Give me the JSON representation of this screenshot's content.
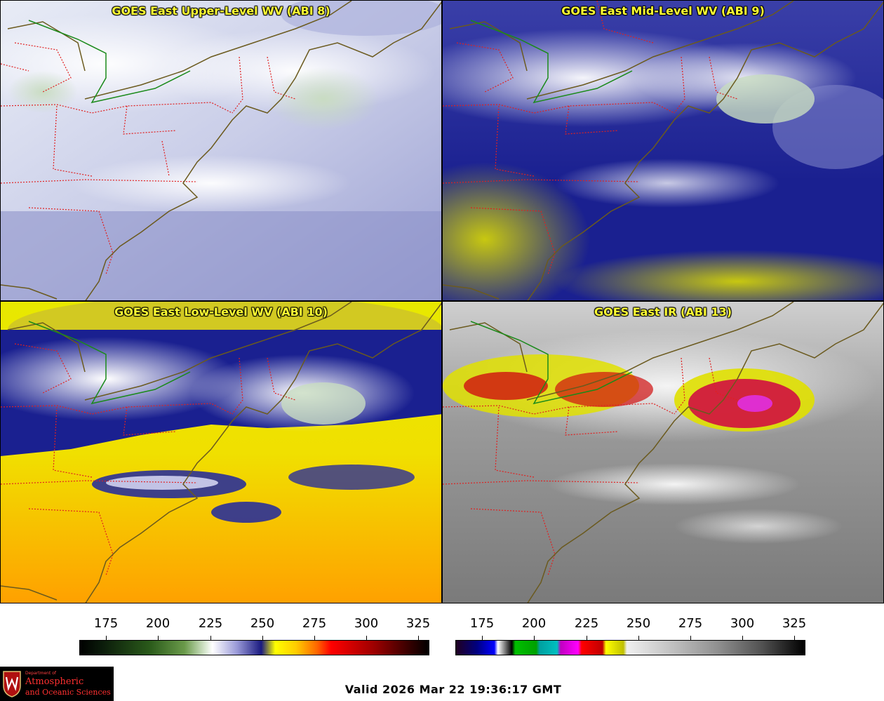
{
  "panels": [
    {
      "title": "GOES East Upper-Level WV (ABI 8)"
    },
    {
      "title": "GOES East Mid-Level WV (ABI 9)"
    },
    {
      "title": "GOES East Low-Level WV (ABI 10)"
    },
    {
      "title": "GOES East IR (ABI 13)"
    }
  ],
  "colorbars": {
    "wv_ticks": [
      "175",
      "200",
      "225",
      "250",
      "275",
      "300",
      "325"
    ],
    "ir_ticks": [
      "175",
      "200",
      "225",
      "250",
      "275",
      "300",
      "325"
    ]
  },
  "logo": {
    "line1": "Department of",
    "line2": "Atmospheric",
    "line3": "and Oceanic Sciences"
  },
  "valid_time": "Valid 2026 Mar 22 19:36:17 GMT",
  "colors": {
    "title_text": "#ffff33",
    "state_border": "#e02020",
    "coast": "#6b5a1e",
    "intl_border": "#1a8a1a"
  }
}
